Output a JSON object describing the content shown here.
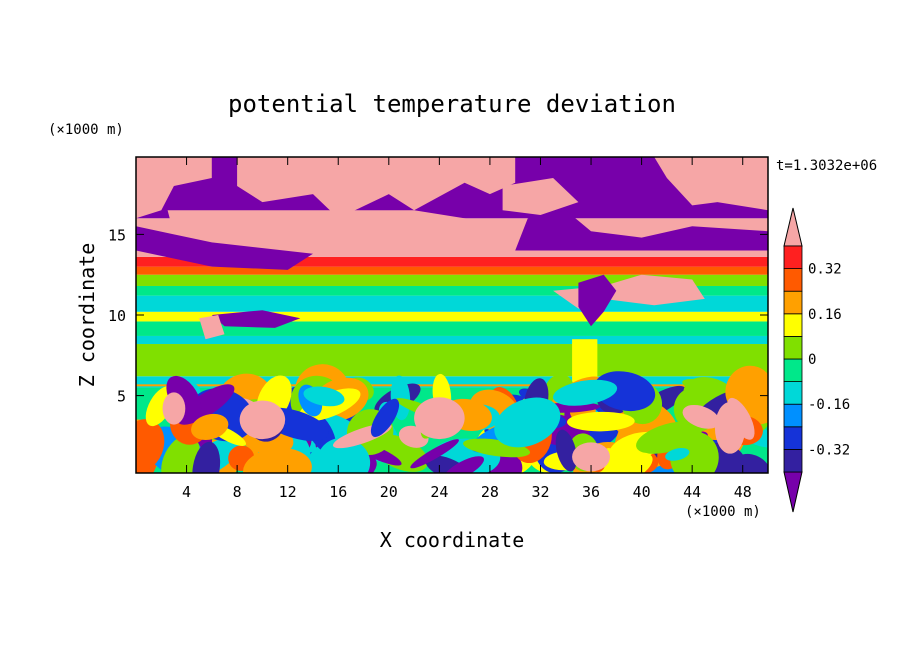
{
  "chart_data": {
    "type": "heatmap",
    "title": "potential temperature deviation",
    "xlabel": "X coordinate",
    "ylabel": "Z coordinate",
    "x_unit": "(×1000 m)",
    "y_unit": "(×1000 m)",
    "time_label": "t=1.3032e+06",
    "xlim": [
      0,
      50
    ],
    "ylim": [
      0.2,
      19.8
    ],
    "x_ticks": [
      4,
      8,
      12,
      16,
      20,
      24,
      28,
      32,
      36,
      40,
      44,
      48
    ],
    "y_ticks": [
      5,
      10,
      15
    ],
    "colorbar": {
      "levels": [
        -0.4,
        -0.32,
        -0.24,
        -0.16,
        -0.08,
        0,
        0.08,
        0.16,
        0.24,
        0.32,
        0.4
      ],
      "labels": [
        "0.32",
        "0.16",
        "0",
        "-0.16",
        "-0.32"
      ],
      "colors": [
        "#7700aa",
        "#3320a0",
        "#1533d8",
        "#0090ff",
        "#00d8d8",
        "#00e88a",
        "#80e000",
        "#ffff00",
        "#ffa000",
        "#ff5a00",
        "#ff2020",
        "#f6a6a6"
      ]
    },
    "field_layers": [
      {
        "z_range": [
          16,
          19.8
        ],
        "description": "mostly positive (>0.4) with patches below -0.4"
      },
      {
        "z_range": [
          12.5,
          14
        ],
        "description": "warm band 0.24 to 0.4"
      },
      {
        "z_range": [
          10,
          12.5
        ],
        "description": "-0.16 to 0.08"
      },
      {
        "z_range": [
          5.5,
          10
        ],
        "description": "-0.08 to 0.16"
      },
      {
        "z_range": [
          0.2,
          5.5
        ],
        "description": "turbulent cells, -0.4 to >0.4"
      }
    ]
  }
}
